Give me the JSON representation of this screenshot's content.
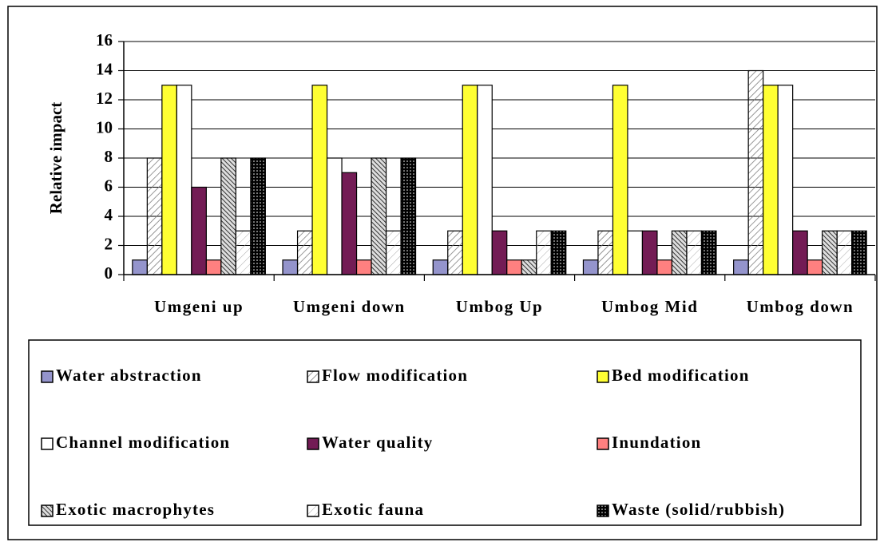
{
  "chart_data": {
    "type": "bar",
    "ylabel": "Relative impact",
    "categories": [
      "Umgeni up",
      "Umgeni down",
      "Umbog Up",
      "Umbog Mid",
      "Umbog down"
    ],
    "series": [
      {
        "name": "Water abstraction",
        "color": "#9494cc",
        "pattern": "solid",
        "values": [
          1,
          1,
          1,
          1,
          1
        ]
      },
      {
        "name": "Flow modification",
        "color": "#ffffff",
        "pattern": "diagonal",
        "values": [
          8,
          3,
          3,
          3,
          14
        ]
      },
      {
        "name": "Bed modification",
        "color": "#ffff33",
        "pattern": "solid",
        "values": [
          13,
          13,
          13,
          13,
          13
        ]
      },
      {
        "name": "Channel modification",
        "color": "#ffffff",
        "pattern": "solid",
        "values": [
          13,
          8,
          13,
          3,
          13
        ]
      },
      {
        "name": "Water quality",
        "color": "#731c55",
        "pattern": "solid",
        "values": [
          6,
          7,
          3,
          3,
          3
        ]
      },
      {
        "name": "Inundation",
        "color": "#ff8080",
        "pattern": "solid",
        "values": [
          1,
          1,
          1,
          1,
          1
        ]
      },
      {
        "name": "Exotic macrophytes",
        "color": "#ffffff",
        "pattern": "dense",
        "values": [
          8,
          8,
          1,
          3,
          3
        ]
      },
      {
        "name": "Exotic fauna",
        "color": "#ffffff",
        "pattern": "light",
        "values": [
          3,
          3,
          3,
          3,
          3
        ]
      },
      {
        "name": "Waste (solid/rubbish)",
        "color": "#000000",
        "pattern": "dots",
        "values": [
          8,
          8,
          3,
          3,
          3
        ]
      }
    ],
    "ylim": [
      0,
      16
    ],
    "yticks": [
      0,
      2,
      4,
      6,
      8,
      10,
      12,
      14,
      16
    ],
    "grid": true,
    "legend": "bottom"
  }
}
